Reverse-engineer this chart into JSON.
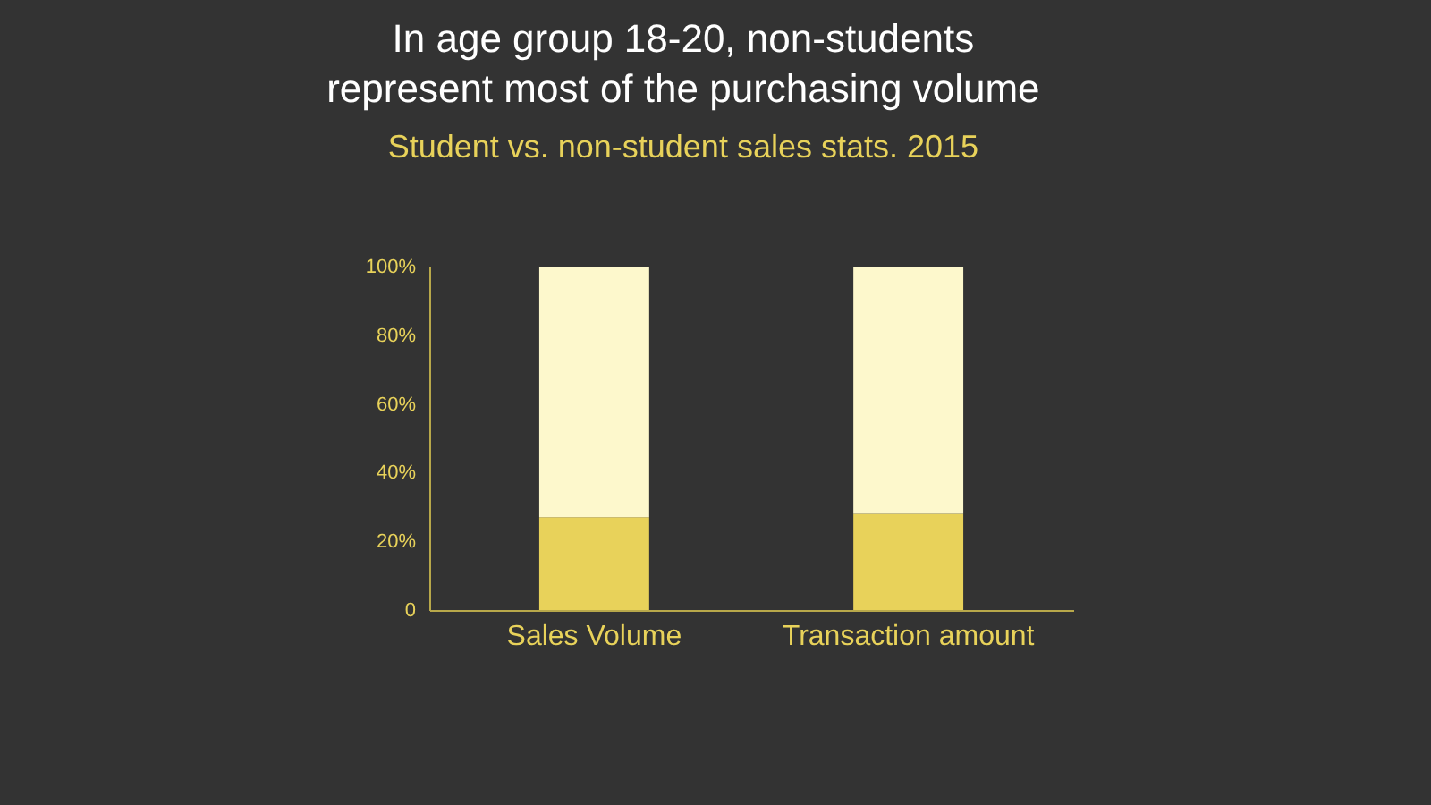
{
  "chart_data": {
    "type": "bar",
    "title": "In age group 18-20, non-students represent most of the purchasing volume",
    "subtitle": "Student vs. non-student sales stats. 2015",
    "stacked": true,
    "categories": [
      "Sales Volume",
      "Transaction amount"
    ],
    "series": [
      {
        "color": "#e8d25a",
        "values": [
          27,
          28
        ]
      },
      {
        "color": "#fdf8cc",
        "values": [
          73,
          72
        ]
      }
    ],
    "ylim": [
      0,
      100
    ],
    "yticks": [
      {
        "value": 0,
        "label": "0"
      },
      {
        "value": 20,
        "label": "20%"
      },
      {
        "value": 40,
        "label": "40%"
      },
      {
        "value": 60,
        "label": "60%"
      },
      {
        "value": 80,
        "label": "80%"
      },
      {
        "value": 100,
        "label": "100%"
      }
    ],
    "grid": false,
    "legend": false
  }
}
